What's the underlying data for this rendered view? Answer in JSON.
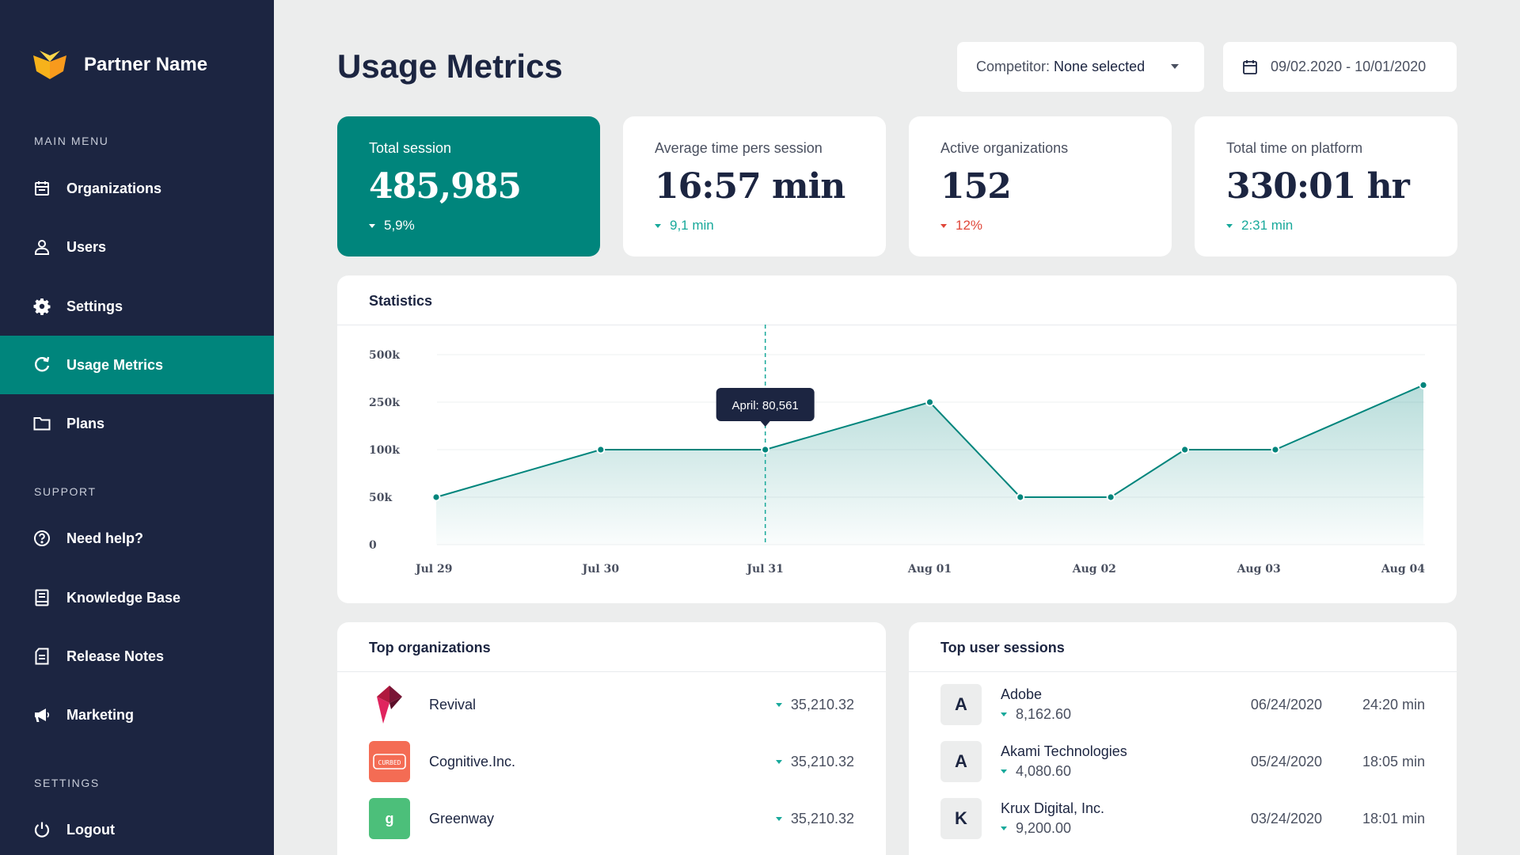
{
  "brand": {
    "name": "Partner Name"
  },
  "sidebar": {
    "main_menu_title": "MAIN MENU",
    "main_items": [
      {
        "label": "Organizations",
        "icon": "calendar-icon"
      },
      {
        "label": "Users",
        "icon": "user-icon"
      },
      {
        "label": "Settings",
        "icon": "gear-icon"
      },
      {
        "label": "Usage Metrics",
        "icon": "refresh-icon",
        "active": true
      },
      {
        "label": "Plans",
        "icon": "folder-icon"
      }
    ],
    "support_title": "SUPPORT",
    "support_items": [
      {
        "label": "Need help?",
        "icon": "help-icon"
      },
      {
        "label": "Knowledge Base",
        "icon": "book-icon"
      },
      {
        "label": "Release Notes",
        "icon": "notes-icon"
      },
      {
        "label": "Marketing",
        "icon": "megaphone-icon"
      }
    ],
    "settings_title": "SETTINGS",
    "settings_items": [
      {
        "label": "Logout",
        "icon": "power-icon"
      }
    ]
  },
  "header": {
    "title": "Usage Metrics",
    "competitor_label": "Competitor:",
    "competitor_value": "None selected",
    "date_range": "09/02.2020 - 10/01/2020"
  },
  "kpis": [
    {
      "label": "Total session",
      "value": "485,985",
      "delta": "5,9%",
      "trend": "down"
    },
    {
      "label": "Average time pers session",
      "value": "16:57 min",
      "delta": "9,1 min",
      "trend": "down"
    },
    {
      "label": "Active organizations",
      "value": "152",
      "delta": "12%",
      "trend": "down"
    },
    {
      "label": "Total time on platform",
      "value": "330:01 hr",
      "delta": "2:31 min",
      "trend": "down"
    }
  ],
  "colors": {
    "sidebar_bg": "#1c2541",
    "accent": "#00857c",
    "positive": "#18a99b",
    "negative": "#e0473a",
    "page_bg": "#eceded"
  },
  "statistics": {
    "title": "Statistics",
    "tooltip": "April: 80,561"
  },
  "chart_data": {
    "type": "area",
    "title": "Statistics",
    "x_ticks": [
      "Jul 29",
      "Jul 30",
      "Jul 31",
      "Aug 01",
      "Aug 02",
      "Aug 03",
      "Aug 04"
    ],
    "y_ticks": [
      "500k",
      "250k",
      "100k",
      "50k",
      "0"
    ],
    "y_tick_values": [
      500000,
      250000,
      100000,
      50000,
      0
    ],
    "y_scale": "categorical-steps",
    "grid": true,
    "points": [
      {
        "x": "Jul 29",
        "y": 50000
      },
      {
        "x": "Jul 30",
        "y": 100000
      },
      {
        "x": "Jul 31",
        "y": 100000
      },
      {
        "x": "Aug 01",
        "y": 250000
      },
      {
        "x": "Aug 02",
        "y": 50000
      },
      {
        "x": "Aug 02",
        "y": 50000
      },
      {
        "x": "Aug 03",
        "y": 100000
      },
      {
        "x": "Aug 03",
        "y": 100000
      },
      {
        "x": "Aug 04",
        "y": 340000
      }
    ],
    "highlight_x": "Jul 31",
    "tooltip": "April: 80,561"
  },
  "top_organizations": {
    "title": "Top organizations",
    "rows": [
      {
        "name": "Revival",
        "value": "35,210.32",
        "logo": "revival-logo"
      },
      {
        "name": "Cognitive.Inc.",
        "value": "35,210.32",
        "logo": "cognitive-logo",
        "logo_text": "CURBED"
      },
      {
        "name": "Greenway",
        "value": "35,210.32",
        "logo": "greenway-logo",
        "logo_text": "g"
      }
    ]
  },
  "top_user_sessions": {
    "title": "Top user sessions",
    "rows": [
      {
        "initial": "A",
        "name": "Adobe",
        "value": "8,162.60",
        "date": "06/24/2020",
        "time": "24:20 min"
      },
      {
        "initial": "A",
        "name": "Akami Technologies",
        "value": "4,080.60",
        "date": "05/24/2020",
        "time": "18:05 min"
      },
      {
        "initial": "K",
        "name": "Krux Digital, Inc.",
        "value": "9,200.00",
        "date": "03/24/2020",
        "time": "18:01 min"
      }
    ]
  }
}
